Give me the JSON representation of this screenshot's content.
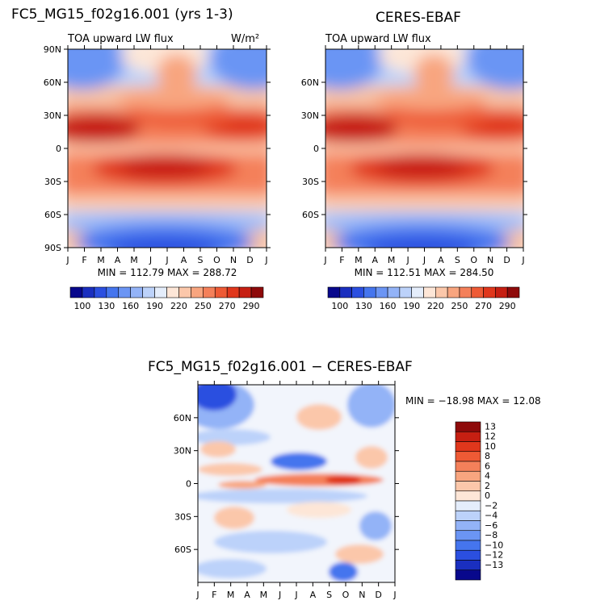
{
  "chart_data": [
    {
      "type": "heatmap",
      "title": "FC5_MG15_f02g16.001 (yrs 1-3)",
      "subtitle": "TOA upward LW flux",
      "units_label": "W/m²",
      "x_ticks": [
        "J",
        "F",
        "M",
        "A",
        "M",
        "J",
        "J",
        "A",
        "S",
        "O",
        "N",
        "D",
        "J"
      ],
      "y_ticks": [
        "90N",
        "60N",
        "30N",
        "0",
        "30S",
        "60S",
        "90S"
      ],
      "y_range": [
        -90,
        90
      ],
      "stats": "MIN = 112.79 MAX = 288.72",
      "min": 112.79,
      "max": 288.72
    },
    {
      "type": "heatmap",
      "title": "CERES-EBAF",
      "subtitle": "TOA upward LW flux",
      "x_ticks": [
        "J",
        "F",
        "M",
        "A",
        "M",
        "J",
        "J",
        "A",
        "S",
        "O",
        "N",
        "D",
        "J"
      ],
      "y_ticks": [
        "60N",
        "30N",
        "0",
        "30S",
        "60S"
      ],
      "y_range": [
        -90,
        90
      ],
      "stats": "MIN = 112.51 MAX = 284.50",
      "min": 112.51,
      "max": 284.5
    },
    {
      "type": "heatmap",
      "title": "FC5_MG15_f02g16.001 − CERES-EBAF",
      "x_ticks": [
        "J",
        "F",
        "M",
        "A",
        "M",
        "J",
        "J",
        "A",
        "S",
        "O",
        "N",
        "D",
        "J"
      ],
      "y_ticks": [
        "60N",
        "30N",
        "0",
        "30S",
        "60S"
      ],
      "y_range": [
        -90,
        90
      ],
      "stats": "MIN = −18.98 MAX =  12.08",
      "min": -18.98,
      "max": 12.08
    }
  ],
  "colorbar_abs": {
    "labels": [
      "100",
      "130",
      "160",
      "190",
      "220",
      "250",
      "270",
      "290"
    ],
    "colors": [
      "#08088c",
      "#1a2fbf",
      "#2b4fe0",
      "#4575ee",
      "#6b95f4",
      "#93b3f7",
      "#bcd2fa",
      "#e4edfb",
      "#fde6d7",
      "#fbc7aa",
      "#f8a57f",
      "#f4805a",
      "#ee5a35",
      "#e0371c",
      "#c61f12",
      "#8e0a0a"
    ]
  },
  "colorbar_diff": {
    "labels": [
      "13",
      "12",
      "10",
      "8",
      "6",
      "4",
      "2",
      "0",
      "−2",
      "−4",
      "−6",
      "−8",
      "−10",
      "−12",
      "−13"
    ],
    "colors": [
      "#8e0a0a",
      "#c61f12",
      "#e0371c",
      "#ee5a35",
      "#f4805a",
      "#f8a57f",
      "#fbc7aa",
      "#fde6d7",
      "#e4edfb",
      "#bcd2fa",
      "#93b3f7",
      "#6b95f4",
      "#4575ee",
      "#2b4fe0",
      "#1a2fbf",
      "#08088c"
    ]
  }
}
